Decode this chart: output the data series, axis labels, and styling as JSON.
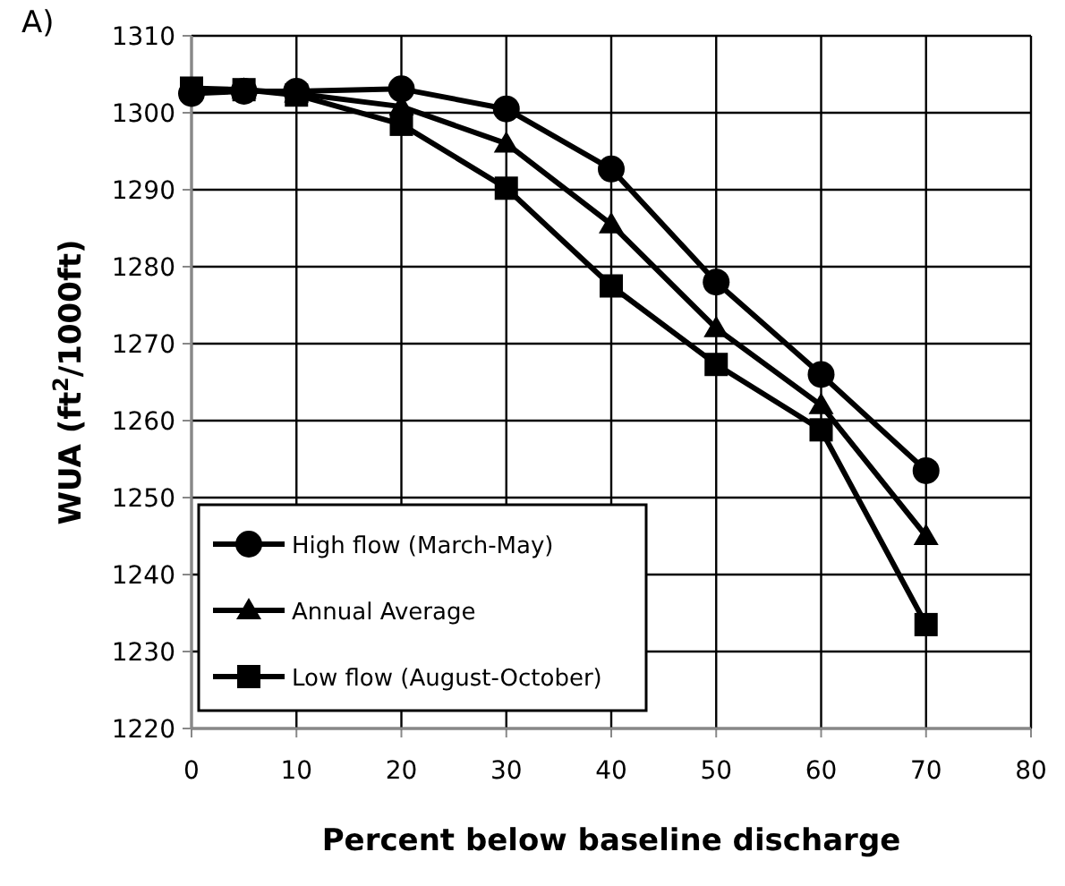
{
  "chart_data": {
    "type": "line",
    "title": "A)",
    "xlabel": "Percent below baseline discharge",
    "ylabel": "WUA (ft$^{2}$/1000ft)",
    "x": [
      0,
      5,
      10,
      20,
      30,
      40,
      50,
      60,
      70
    ],
    "series": [
      {
        "name": "High flow (March-May)",
        "color": "#000000",
        "marker": "circle",
        "values": [
          1302.5,
          1302.8,
          1302.8,
          1303.1,
          1300.5,
          1292.7,
          1278,
          1266,
          1253.5
        ]
      },
      {
        "name": "Annual  Average",
        "color": "#000000",
        "marker": "triangle",
        "values": [
          1303,
          1303,
          1302.5,
          1300.8,
          1296,
          1285.5,
          1272,
          1262,
          1245
        ]
      },
      {
        "name": "Low flow (August-October)",
        "color": "#000000",
        "marker": "square",
        "values": [
          1303.2,
          1303,
          1302.3,
          1298.5,
          1290.2,
          1277.5,
          1267.3,
          1258.8,
          1233.5
        ]
      }
    ],
    "xlim": [
      0,
      80
    ],
    "xticks": [
      0,
      10,
      20,
      30,
      40,
      50,
      60,
      70,
      80
    ],
    "ylim": [
      1220,
      1310
    ],
    "yticks": [
      1220,
      1230,
      1240,
      1250,
      1260,
      1270,
      1280,
      1290,
      1300,
      1310
    ],
    "grid": true,
    "legend": "bottom left",
    "line_style": "solid"
  }
}
